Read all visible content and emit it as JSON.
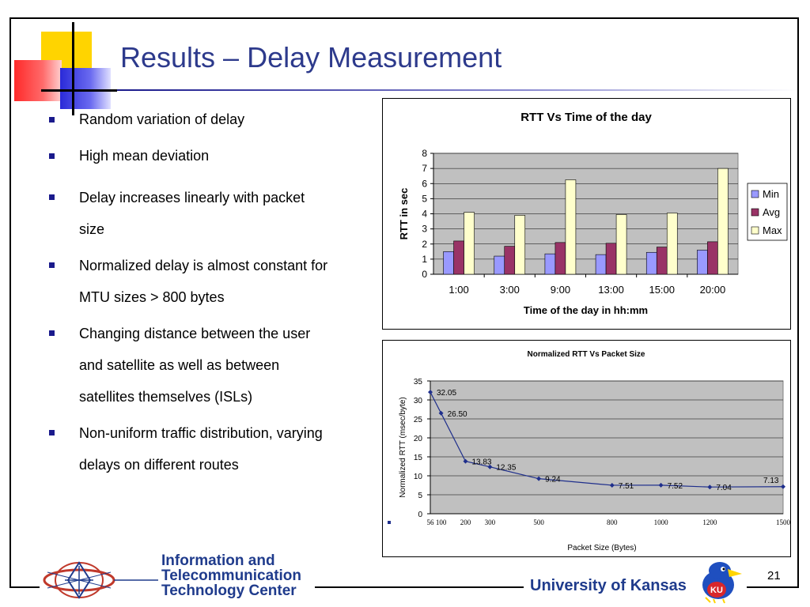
{
  "slide": {
    "title": "Results – Delay Measurement",
    "page_number": "21"
  },
  "bullets": [
    "Random variation of delay",
    "High mean deviation",
    "Delay increases linearly with packet size",
    "Normalized delay is almost constant for MTU sizes > 800 bytes",
    "Changing distance between the user and satellite as well as between satellites themselves (ISLs)",
    "Non-uniform traffic distribution, varying delays on different routes"
  ],
  "footer": {
    "itc_line1": "Information and",
    "itc_line2": "Telecommunication",
    "itc_line3": "Technology Center",
    "university": "University of Kansas",
    "ku_logo_text": "KU"
  },
  "colors": {
    "title": "#2d3a8c",
    "bullet_marker": "#1a1a8c",
    "min": "#9999ff",
    "avg": "#993366",
    "max": "#ffffcc",
    "plot_bg": "#c0c0c0",
    "line": "#1f2f8c"
  },
  "chart_data": [
    {
      "type": "bar",
      "title": "RTT Vs Time of the day",
      "xlabel": "Time of the day in hh:mm",
      "ylabel": "RTT in sec",
      "categories": [
        "1:00",
        "3:00",
        "9:00",
        "13:00",
        "15:00",
        "20:00"
      ],
      "series": [
        {
          "name": "Min",
          "values": [
            1.5,
            1.2,
            1.35,
            1.3,
            1.45,
            1.6
          ]
        },
        {
          "name": "Avg",
          "values": [
            2.2,
            1.85,
            2.1,
            2.05,
            1.8,
            2.15
          ]
        },
        {
          "name": "Max",
          "values": [
            4.1,
            3.9,
            6.25,
            3.95,
            4.05,
            7.0
          ]
        }
      ],
      "ylim": [
        0,
        8
      ],
      "yticks": [
        0,
        1,
        2,
        3,
        4,
        5,
        6,
        7,
        8
      ],
      "legend": "right",
      "grid": true
    },
    {
      "type": "line",
      "title": "Normalized RTT Vs Packet Size",
      "xlabel": "Packet Size (Bytes)",
      "ylabel": "Normalized RTT (msec/byte)",
      "x": [
        56,
        100,
        200,
        300,
        500,
        800,
        1000,
        1200,
        1500
      ],
      "x_tick_labels": [
        "56",
        "100",
        "200",
        "300",
        "500",
        "800",
        "1000",
        "1200",
        "1500"
      ],
      "series": [
        {
          "values": [
            32.05,
            26.5,
            13.83,
            12.35,
            9.24,
            7.51,
            7.52,
            7.04,
            7.13
          ]
        }
      ],
      "data_labels": [
        "32.05",
        "26.50",
        "13.83",
        "12.35",
        "9.24",
        "7.51",
        "7.52",
        "7.04",
        "7.13"
      ],
      "ylim": [
        0,
        35
      ],
      "yticks": [
        0,
        5,
        10,
        15,
        20,
        25,
        30,
        35
      ],
      "grid": true
    }
  ]
}
